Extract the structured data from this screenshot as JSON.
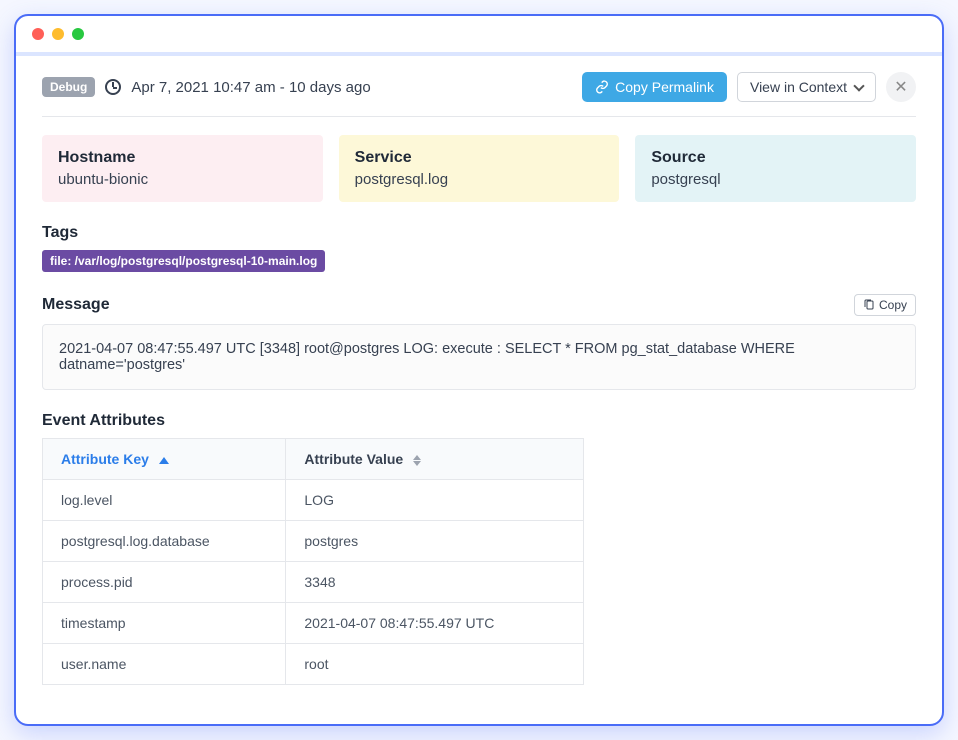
{
  "header": {
    "badge": "Debug",
    "timestamp": "Apr 7, 2021 10:47 am - 10 days ago",
    "copy_permalink": "Copy Permalink",
    "view_context": "View in Context"
  },
  "cards": {
    "hostname_label": "Hostname",
    "hostname_value": "ubuntu-bionic",
    "service_label": "Service",
    "service_value": "postgresql.log",
    "source_label": "Source",
    "source_value": "postgresql"
  },
  "tags": {
    "label": "Tags",
    "tag_text": "file:  /var/log/postgresql/postgresql-10-main.log"
  },
  "message": {
    "label": "Message",
    "copy": "Copy",
    "text": "2021-04-07 08:47:55.497 UTC [3348] root@postgres LOG:  execute : SELECT * FROM pg_stat_database WHERE datname='postgres'"
  },
  "attributes": {
    "label": "Event Attributes",
    "col_key": "Attribute Key",
    "col_value": "Attribute Value",
    "rows": [
      {
        "k": "log.level",
        "v": "LOG"
      },
      {
        "k": "postgresql.log.database",
        "v": "postgres"
      },
      {
        "k": "process.pid",
        "v": "3348"
      },
      {
        "k": "timestamp",
        "v": "2021-04-07 08:47:55.497 UTC"
      },
      {
        "k": "user.name",
        "v": "root"
      }
    ]
  }
}
